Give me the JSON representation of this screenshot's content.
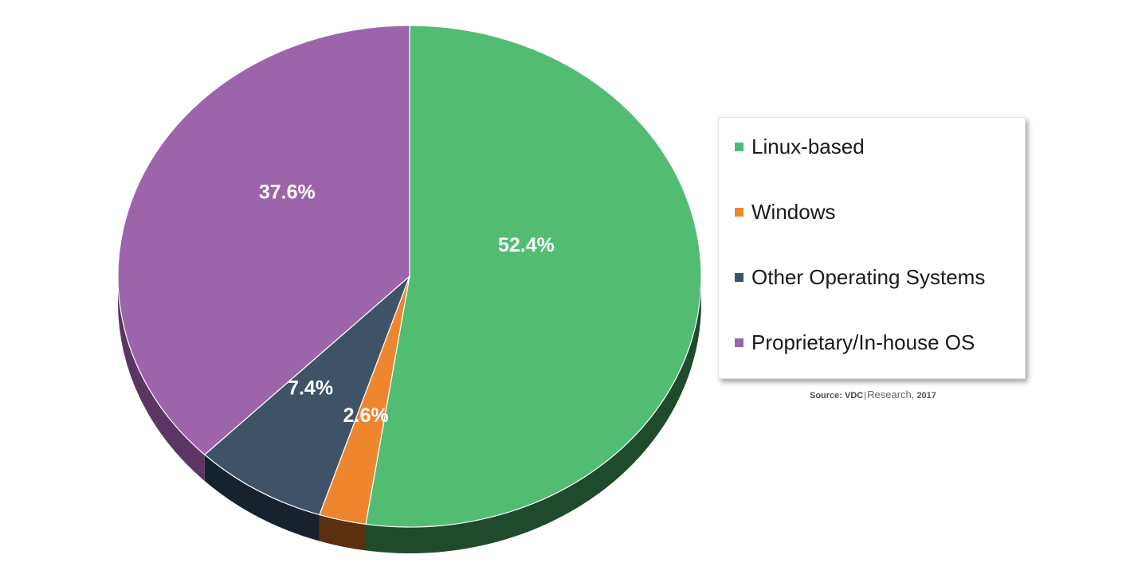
{
  "chart_data": {
    "type": "pie",
    "categories": [
      "Linux-based",
      "Windows",
      "Other Operating Systems",
      "Proprietary/In-house OS"
    ],
    "values": [
      52.4,
      2.6,
      7.4,
      37.6
    ],
    "value_labels": [
      "52.4%",
      "2.6%",
      "7.4%",
      "37.6%"
    ],
    "colors": [
      "#52bd72",
      "#ee8630",
      "#3e5368",
      "#9c65aa"
    ],
    "side_colors": [
      "#1f4a2c",
      "#5a3010",
      "#172230",
      "#5b3664"
    ],
    "legend_position": "right",
    "three_d": true
  },
  "source": {
    "prefix": "Source:",
    "brand": "VDC",
    "name": "Research,",
    "year": "2017"
  }
}
